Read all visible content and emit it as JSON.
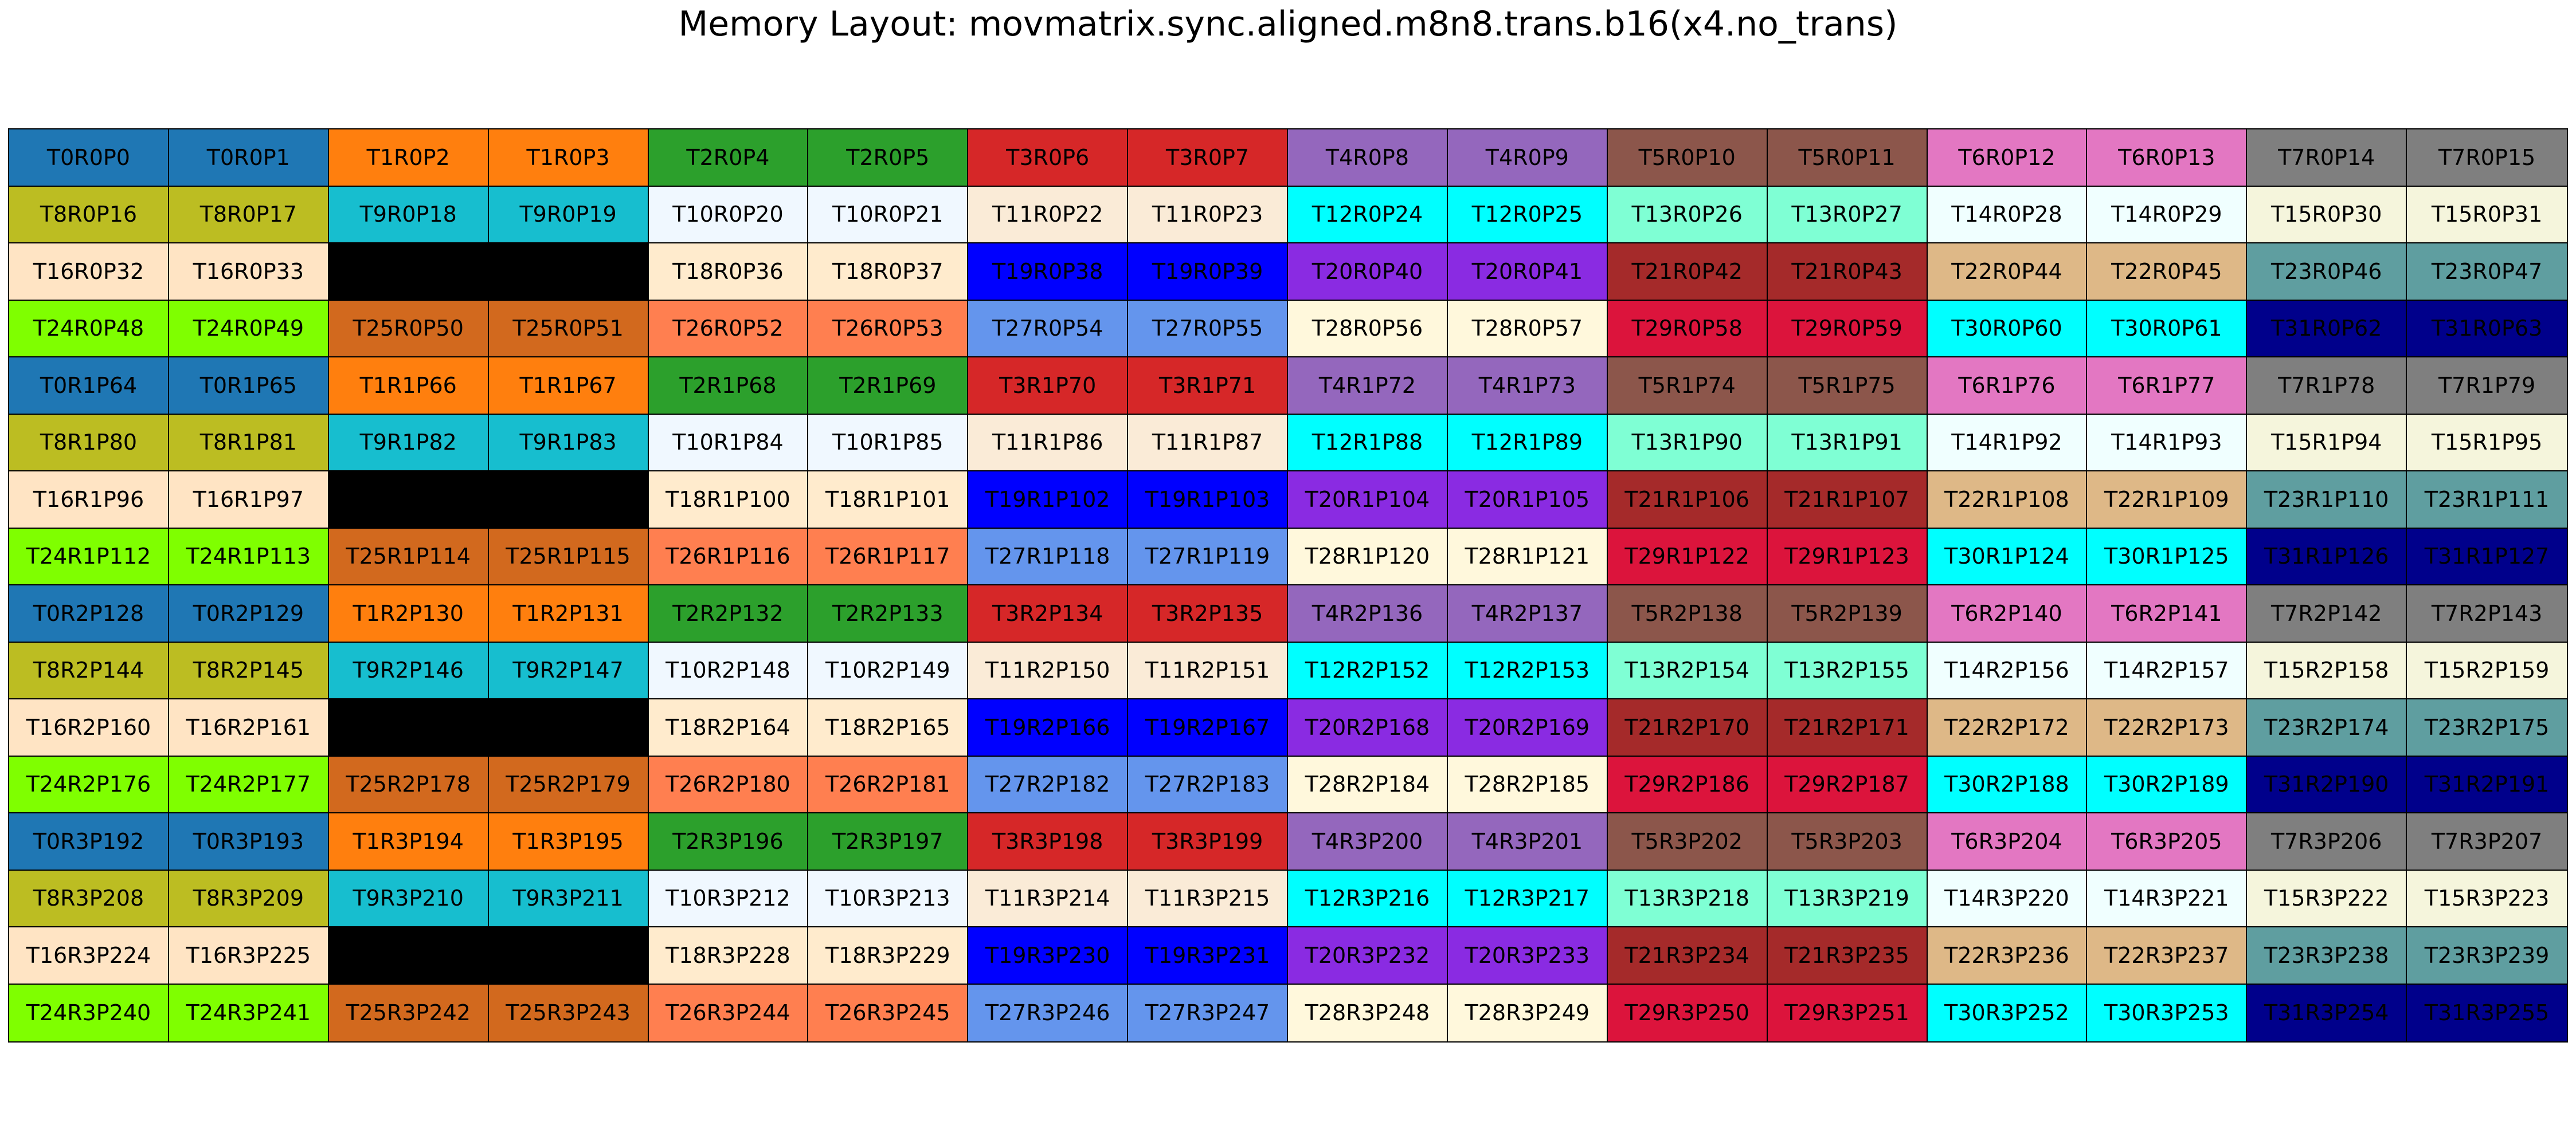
{
  "title": "Memory Layout: movmatrix.sync.aligned.m8n8.trans.b16(x4.no_trans)",
  "grid": {
    "rows": 16,
    "cols": 16,
    "registers": 4,
    "threads_per_register_block": 32,
    "values_per_thread_per_register": 2,
    "label_format": "T{thread}R{register}P{position}",
    "thread_colors": {
      "0": "#1f77b4",
      "1": "#ff7f0e",
      "2": "#2ca02c",
      "3": "#d62728",
      "4": "#9467bd",
      "5": "#8c564b",
      "6": "#e377c2",
      "7": "#7f7f7f",
      "8": "#bcbd22",
      "9": "#17becf",
      "10": "#f0f8ff",
      "11": "#faebd7",
      "12": "#00ffff",
      "13": "#7fffd4",
      "14": "#f0ffff",
      "15": "#f5f5dc",
      "16": "#ffe4c4",
      "17": "#000000",
      "18": "#ffebcd",
      "19": "#0000ff",
      "20": "#8a2be2",
      "21": "#a52a2a",
      "22": "#deb887",
      "23": "#5f9ea0",
      "24": "#7fff00",
      "25": "#d2691e",
      "26": "#ff7f50",
      "27": "#6495ed",
      "28": "#fff8dc",
      "29": "#dc143c",
      "30": "#00ffff",
      "31": "#00008b"
    }
  }
}
